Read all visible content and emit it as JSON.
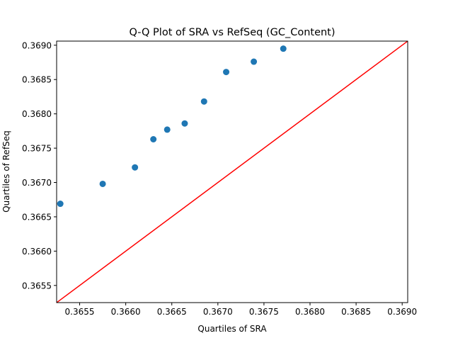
{
  "chart_data": {
    "type": "scatter",
    "title": "Q-Q Plot of SRA vs RefSeq (GC_Content)",
    "xlabel": "Quartiles of SRA",
    "ylabel": "Quartiles of RefSeq",
    "xlim": [
      0.36525,
      0.36906
    ],
    "ylim": [
      0.36525,
      0.36906
    ],
    "xticks": [
      "0.3655",
      "0.3660",
      "0.3665",
      "0.3670",
      "0.3675",
      "0.3680",
      "0.3685",
      "0.3690"
    ],
    "yticks": [
      "0.3655",
      "0.3660",
      "0.3665",
      "0.3670",
      "0.3675",
      "0.3680",
      "0.3685",
      "0.3690"
    ],
    "grid": false,
    "points": [
      {
        "x": 0.36529,
        "y": 0.36669
      },
      {
        "x": 0.36575,
        "y": 0.36698
      },
      {
        "x": 0.3661,
        "y": 0.36722
      },
      {
        "x": 0.3663,
        "y": 0.36763
      },
      {
        "x": 0.36645,
        "y": 0.36777
      },
      {
        "x": 0.36664,
        "y": 0.36786
      },
      {
        "x": 0.36685,
        "y": 0.36818
      },
      {
        "x": 0.36709,
        "y": 0.36861
      },
      {
        "x": 0.36739,
        "y": 0.36876
      },
      {
        "x": 0.36771,
        "y": 0.36895
      }
    ],
    "reference_line": {
      "x": [
        0.36525,
        0.36906
      ],
      "y": [
        0.36525,
        0.36906
      ]
    },
    "colors": {
      "points": "#1f77b4",
      "reference_line": "#ff0000",
      "axes": "#000000"
    }
  }
}
